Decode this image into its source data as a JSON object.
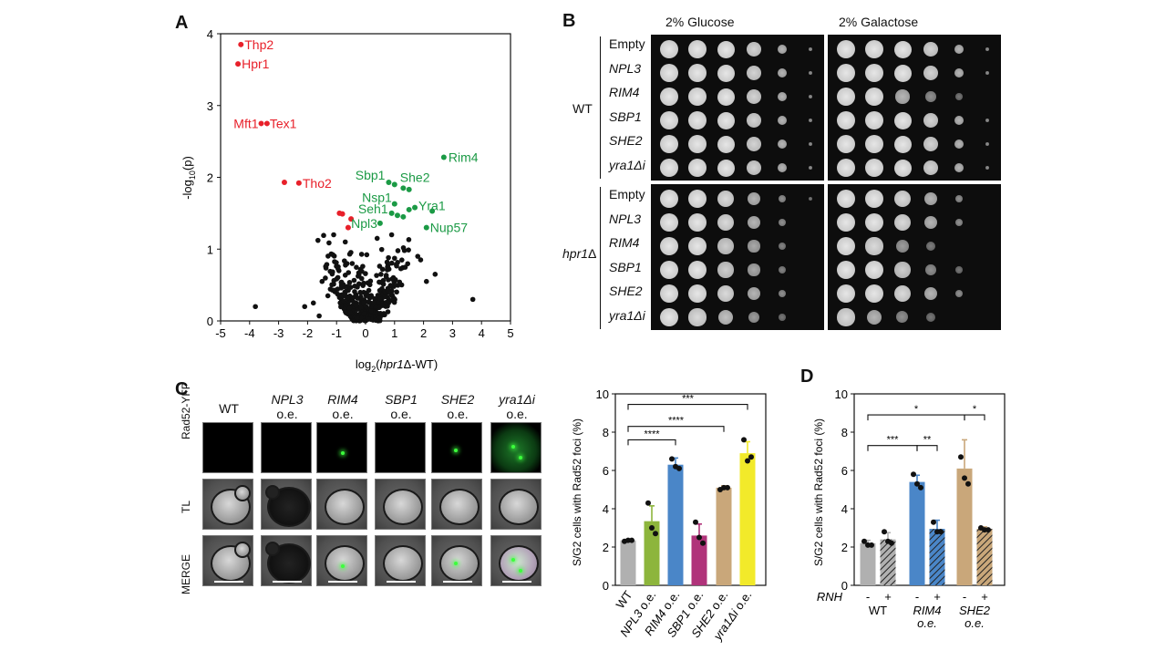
{
  "panels": {
    "A": "A",
    "B": "B",
    "C": "C",
    "D": "D"
  },
  "panelA": {
    "xlabel_pre": "log",
    "xlabel_sub": "2",
    "xlabel_post": "(",
    "xlabel_it": "hpr1",
    "xlabel_end": "Δ-WT)",
    "ylabel_pre": "-log",
    "ylabel_sub": "10",
    "ylabel_post": "(p)",
    "xticks": [
      "-5",
      "-4",
      "-3",
      "-2",
      "-1",
      "0",
      "1",
      "2",
      "3",
      "4",
      "5"
    ],
    "yticks": [
      "0",
      "1",
      "2",
      "3",
      "4"
    ],
    "colors": {
      "red": "#e8202a",
      "green": "#1b9a45",
      "black": "#111111"
    }
  },
  "panelB": {
    "col1": "2% Glucose",
    "col2": "2% Galactose",
    "group1": "WT",
    "group2_it": "hpr1",
    "group2_end": "Δ",
    "rows1": [
      "Empty",
      "NPL3",
      "RIM4",
      "SBP1",
      "SHE2",
      "yra1Δi"
    ],
    "rows2": [
      "Empty",
      "NPL3",
      "RIM4",
      "SBP1",
      "SHE2",
      "yra1Δi"
    ]
  },
  "panelC": {
    "col_titles": [
      [
        "WT",
        ""
      ],
      [
        "NPL3",
        "o.e."
      ],
      [
        "RIM4",
        "o.e."
      ],
      [
        "SBP1",
        "o.e."
      ],
      [
        "SHE2",
        "o.e."
      ],
      [
        "yra1Δi",
        "o.e."
      ]
    ],
    "row_labels": [
      "Rad52-YFP",
      "TL",
      "MERGE"
    ],
    "ylabel": "S/G2 cells with Rad52 foci (%)",
    "yticks": [
      "0",
      "2",
      "4",
      "6",
      "8",
      "10"
    ],
    "sig": [
      "****",
      "****",
      "***"
    ]
  },
  "panelD": {
    "ylabel": "S/G2 cells with Rad52 foci (%)",
    "yticks": [
      "0",
      "2",
      "4",
      "6",
      "8",
      "10"
    ],
    "rnh_label": "RNH",
    "minus": "-",
    "plus": "+",
    "groups": [
      [
        "WT",
        ""
      ],
      [
        "RIM4",
        "o.e."
      ],
      [
        "SHE2",
        "o.e."
      ]
    ],
    "sig": [
      "***",
      "**",
      "*",
      "*"
    ]
  },
  "chart_data": [
    {
      "type": "scatter",
      "title": "",
      "xlabel": "log2(hpr1Δ-WT)",
      "ylabel": "-log10(p)",
      "xlim": [
        -5,
        5
      ],
      "ylim": [
        0,
        4
      ],
      "labeled_points": [
        {
          "name": "Thp2",
          "x": -4.3,
          "y": 3.85,
          "group": "red"
        },
        {
          "name": "Hpr1",
          "x": -4.4,
          "y": 3.58,
          "group": "red"
        },
        {
          "name": "Mft1",
          "x": -3.6,
          "y": 2.75,
          "group": "red"
        },
        {
          "name": "Tex1",
          "x": -3.4,
          "y": 2.75,
          "group": "red"
        },
        {
          "name": "Tho2",
          "x": -2.3,
          "y": 1.92,
          "group": "red"
        },
        {
          "name": "",
          "x": -2.8,
          "y": 1.93,
          "group": "red"
        },
        {
          "name": "",
          "x": -0.9,
          "y": 1.5,
          "group": "red"
        },
        {
          "name": "",
          "x": -0.8,
          "y": 1.49,
          "group": "red"
        },
        {
          "name": "",
          "x": -0.5,
          "y": 1.42,
          "group": "red"
        },
        {
          "name": "",
          "x": -0.6,
          "y": 1.3,
          "group": "red"
        },
        {
          "name": "Rim4",
          "x": 2.7,
          "y": 2.28,
          "group": "green"
        },
        {
          "name": "Sbp1",
          "x": 0.8,
          "y": 1.93,
          "group": "green"
        },
        {
          "name": "She2",
          "x": 1.0,
          "y": 1.9,
          "group": "green"
        },
        {
          "name": "",
          "x": 1.3,
          "y": 1.85,
          "group": "green"
        },
        {
          "name": "",
          "x": 1.5,
          "y": 1.83,
          "group": "green"
        },
        {
          "name": "Nsp1",
          "x": 1.0,
          "y": 1.63,
          "group": "green"
        },
        {
          "name": "Yra1",
          "x": 1.7,
          "y": 1.58,
          "group": "green"
        },
        {
          "name": "",
          "x": 1.5,
          "y": 1.55,
          "group": "green"
        },
        {
          "name": "Seh1",
          "x": 0.9,
          "y": 1.5,
          "group": "green"
        },
        {
          "name": "",
          "x": 1.1,
          "y": 1.47,
          "group": "green"
        },
        {
          "name": "",
          "x": 1.3,
          "y": 1.45,
          "group": "green"
        },
        {
          "name": "",
          "x": 2.3,
          "y": 1.53,
          "group": "green"
        },
        {
          "name": "Nup57",
          "x": 2.1,
          "y": 1.3,
          "group": "green"
        },
        {
          "name": "Npl3",
          "x": 0.5,
          "y": 1.36,
          "group": "green"
        }
      ],
      "black_points_outliers": [
        [
          -3.8,
          0.2
        ],
        [
          -1.8,
          0.25
        ],
        [
          -1.6,
          0.07
        ],
        [
          3.7,
          0.3
        ],
        [
          2.4,
          0.65
        ],
        [
          1.9,
          0.85
        ],
        [
          2.1,
          0.55
        ],
        [
          -1.1,
          1.2
        ],
        [
          -0.7,
          1.1
        ],
        [
          0.4,
          1.15
        ],
        [
          1.8,
          0.9
        ],
        [
          0.9,
          1.2
        ],
        [
          -2.1,
          0.2
        ],
        [
          -1.5,
          0.55
        ],
        [
          -1.3,
          0.35
        ]
      ]
    },
    {
      "type": "bar",
      "title": "",
      "ylabel": "S/G2 cells with Rad52 foci (%)",
      "categories": [
        "WT",
        "NPL3 o.e.",
        "RIM4 o.e.",
        "SBP1 o.e.",
        "SHE2 o.e.",
        "yra1Δi o.e."
      ],
      "values": [
        2.35,
        3.35,
        6.3,
        2.6,
        5.1,
        6.9
      ],
      "errors": [
        0.05,
        0.8,
        0.35,
        0.6,
        0.1,
        0.6
      ],
      "points": [
        [
          2.3,
          2.35,
          2.35
        ],
        [
          4.3,
          3.0,
          2.7
        ],
        [
          6.6,
          6.2,
          6.1
        ],
        [
          3.3,
          2.5,
          2.2
        ],
        [
          5.0,
          5.1,
          5.1
        ],
        [
          7.6,
          6.5,
          6.7
        ]
      ],
      "colors": [
        "#b0b0b0",
        "#8db53c",
        "#4a86c8",
        "#b0337a",
        "#c9a77a",
        "#f2ea2a"
      ],
      "ylim": [
        0,
        10
      ],
      "significance": [
        {
          "pair": [
            "WT",
            "RIM4 o.e."
          ],
          "label": "****"
        },
        {
          "pair": [
            "WT",
            "SHE2 o.e."
          ],
          "label": "****"
        },
        {
          "pair": [
            "WT",
            "yra1Δi o.e."
          ],
          "label": "***"
        }
      ]
    },
    {
      "type": "bar",
      "title": "",
      "ylabel": "S/G2 cells with Rad52 foci (%)",
      "categories": [
        "WT -",
        "WT +",
        "RIM4 o.e. -",
        "RIM4 o.e. +",
        "SHE2 o.e. -",
        "SHE2 o.e. +"
      ],
      "values": [
        2.2,
        2.4,
        5.4,
        2.95,
        6.1,
        2.95
      ],
      "errors": [
        0.15,
        0.35,
        0.35,
        0.45,
        1.5,
        0.1
      ],
      "points": [
        [
          2.3,
          2.1,
          2.1
        ],
        [
          2.8,
          2.3,
          2.2
        ],
        [
          5.8,
          5.3,
          5.1
        ],
        [
          3.3,
          2.8,
          2.8
        ],
        [
          6.7,
          5.6,
          5.3
        ],
        [
          3.0,
          2.9,
          2.9
        ]
      ],
      "colors": [
        "#b0b0b0",
        "#b0b0b0",
        "#4a86c8",
        "#4a86c8",
        "#c9a77a",
        "#c9a77a"
      ],
      "hatched": [
        false,
        true,
        false,
        true,
        false,
        true
      ],
      "ylim": [
        0,
        10
      ],
      "significance": [
        {
          "pair": [
            "WT -",
            "RIM4 o.e. -"
          ],
          "label": "***"
        },
        {
          "pair": [
            "RIM4 o.e. -",
            "RIM4 o.e. +"
          ],
          "label": "**"
        },
        {
          "pair": [
            "WT -",
            "SHE2 o.e. -"
          ],
          "label": "*"
        },
        {
          "pair": [
            "SHE2 o.e. -",
            "SHE2 o.e. +"
          ],
          "label": "*"
        }
      ]
    }
  ]
}
